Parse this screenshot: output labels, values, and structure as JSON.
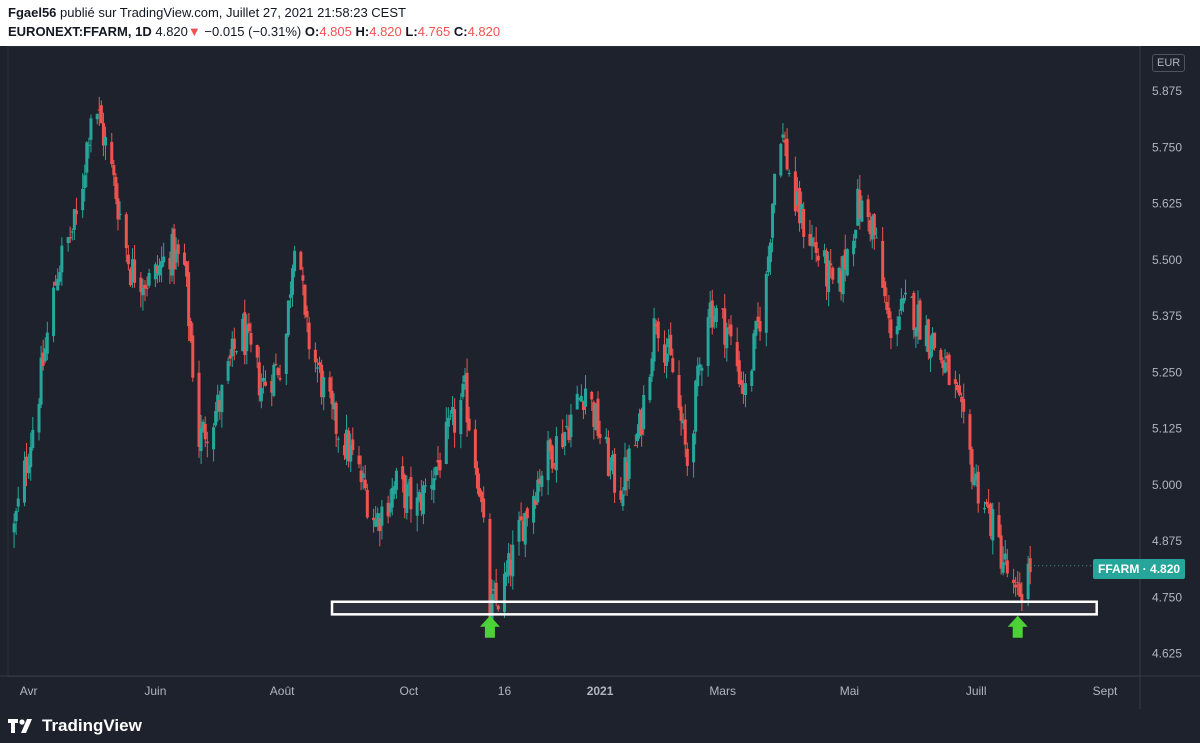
{
  "header": {
    "author": "Fgael56",
    "published_text": "publié sur TradingView.com, Juillet 27, 2021 21:58:23 CEST",
    "symbol": "EURONEXT:FFARM, 1D",
    "last": "4.820",
    "change": "−0.015 (−0.31%)",
    "o_label": "O:",
    "o_value": "4.805",
    "h_label": "H:",
    "h_value": "4.820",
    "l_label": "L:",
    "l_value": "4.765",
    "c_label": "C:",
    "c_value": "4.820"
  },
  "currency": "EUR",
  "price_tag": {
    "ticker": "FFARM",
    "separator": "·",
    "price": "4.820"
  },
  "footer": {
    "logo_text": "TradingView"
  },
  "colors": {
    "up": "#26a69a",
    "down": "#ef5350",
    "background": "#1e222d",
    "axis_text": "#b2b5be",
    "support_box": "#ffffff",
    "arrow": "#4cd137"
  },
  "chart_data": {
    "type": "candlestick",
    "x_ticks": [
      "Avr",
      "Juin",
      "Août",
      "Oct",
      "16",
      "2021",
      "Mars",
      "Mai",
      "Juill",
      "Sept"
    ],
    "y_ticks": [
      "5.875",
      "5.750",
      "5.625",
      "5.500",
      "5.375",
      "5.250",
      "5.125",
      "5.000",
      "4.875",
      "4.750",
      "4.625"
    ],
    "ylim": [
      4.575,
      5.975
    ],
    "y_axis_side": "right",
    "close_path": [
      [
        "2020-03-25",
        4.9
      ],
      [
        "2020-04-05",
        5.18
      ],
      [
        "2020-04-15",
        5.48
      ],
      [
        "2020-04-25",
        5.6
      ],
      [
        "2020-05-02",
        5.87
      ],
      [
        "2020-05-10",
        5.72
      ],
      [
        "2020-05-20",
        5.48
      ],
      [
        "2020-05-30",
        5.45
      ],
      [
        "2020-06-08",
        5.52
      ],
      [
        "2020-06-15",
        5.48
      ],
      [
        "2020-06-22",
        5.1
      ],
      [
        "2020-07-02",
        5.18
      ],
      [
        "2020-07-12",
        5.35
      ],
      [
        "2020-07-22",
        5.22
      ],
      [
        "2020-08-02",
        5.28
      ],
      [
        "2020-08-08",
        5.62
      ],
      [
        "2020-08-12",
        5.35
      ],
      [
        "2020-08-25",
        5.15
      ],
      [
        "2020-09-05",
        5.05
      ],
      [
        "2020-09-15",
        4.92
      ],
      [
        "2020-09-25",
        5.0
      ],
      [
        "2020-10-05",
        4.95
      ],
      [
        "2020-10-15",
        5.05
      ],
      [
        "2020-10-28",
        5.2
      ],
      [
        "2020-11-04",
        5.0
      ],
      [
        "2020-11-09",
        4.72
      ],
      [
        "2020-11-15",
        4.76
      ],
      [
        "2020-11-25",
        4.92
      ],
      [
        "2020-12-05",
        5.05
      ],
      [
        "2020-12-15",
        5.12
      ],
      [
        "2020-12-25",
        5.22
      ],
      [
        "2021-01-03",
        5.08
      ],
      [
        "2021-01-10",
        4.98
      ],
      [
        "2021-01-20",
        5.12
      ],
      [
        "2021-01-28",
        5.38
      ],
      [
        "2021-02-05",
        5.25
      ],
      [
        "2021-02-12",
        5.05
      ],
      [
        "2021-02-22",
        5.4
      ],
      [
        "2021-03-03",
        5.35
      ],
      [
        "2021-03-12",
        5.2
      ],
      [
        "2021-03-22",
        5.45
      ],
      [
        "2021-03-28",
        5.82
      ],
      [
        "2021-04-05",
        5.62
      ],
      [
        "2021-04-15",
        5.52
      ],
      [
        "2021-04-25",
        5.42
      ],
      [
        "2021-05-05",
        5.62
      ],
      [
        "2021-05-12",
        5.58
      ],
      [
        "2021-05-20",
        5.35
      ],
      [
        "2021-05-30",
        5.4
      ],
      [
        "2021-06-10",
        5.32
      ],
      [
        "2021-06-20",
        5.22
      ],
      [
        "2021-06-30",
        5.02
      ],
      [
        "2021-07-08",
        4.92
      ],
      [
        "2021-07-15",
        4.82
      ],
      [
        "2021-07-20",
        4.74
      ],
      [
        "2021-07-27",
        4.82
      ]
    ],
    "annotations": [
      {
        "type": "support-zone",
        "from": "2020-08-25",
        "to": "2021-08-28",
        "low": 4.712,
        "high": 4.74
      },
      {
        "type": "arrow-up",
        "date": "2020-11-09",
        "price": 4.66
      },
      {
        "type": "arrow-up",
        "date": "2021-07-21",
        "price": 4.66
      }
    ]
  }
}
